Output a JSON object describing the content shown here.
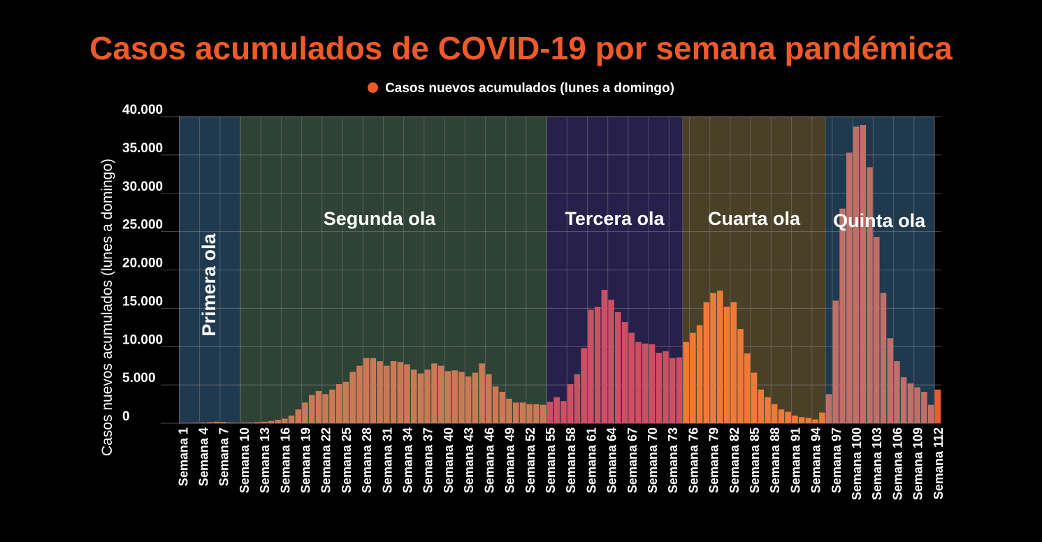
{
  "chart_data": {
    "type": "bar",
    "title": "Casos acumulados de COVID-19 por semana pandémica",
    "legend": [
      "Casos nuevos acumulados (lunes a domingo)"
    ],
    "ylabel": "Casos nuevos acumulados (lunes a domingo)",
    "xlabel": "",
    "ylim": [
      0,
      40000
    ],
    "yticks": [
      "0",
      "5.000",
      "10.000",
      "15.000",
      "20.000",
      "25.000",
      "30.000",
      "35.000",
      "40.000"
    ],
    "grid": true,
    "x_tick_labels": [
      "Semana 1",
      "Semana 4",
      "Semana 7",
      "Semana 10",
      "Semana 13",
      "Semana 16",
      "Semana 19",
      "Semana 22",
      "Semana 25",
      "Semana 28",
      "Semana 31",
      "Semana 34",
      "Semana 37",
      "Semana 40",
      "Semana 43",
      "Semana 46",
      "Semana 49",
      "Semana 52",
      "Semana 55",
      "Semana 58",
      "Semana 61",
      "Semana 64",
      "Semana 67",
      "Semana 70",
      "Semana 73",
      "Semana 76",
      "Semana 79",
      "Semana 82",
      "Semana 85",
      "Semana 88",
      "Semana 91",
      "Semana 94",
      "Semana 97",
      "Semana 100",
      "Semana 103",
      "Semana 106",
      "Semana 109",
      "Semana 112"
    ],
    "weeks": [
      1,
      112
    ],
    "values": [
      20,
      60,
      80,
      100,
      150,
      200,
      180,
      100,
      60,
      80,
      100,
      150,
      200,
      300,
      450,
      600,
      1000,
      1800,
      2700,
      3700,
      4200,
      3800,
      4400,
      5100,
      5400,
      6700,
      7500,
      8500,
      8500,
      8100,
      7500,
      8100,
      8000,
      7700,
      7000,
      6500,
      7000,
      7800,
      7500,
      6800,
      6900,
      6700,
      6100,
      6600,
      7800,
      6400,
      4800,
      4100,
      3200,
      2700,
      2700,
      2500,
      2500,
      2400,
      2800,
      3400,
      2900,
      5100,
      6400,
      9800,
      14800,
      15200,
      17400,
      16100,
      14500,
      13200,
      11800,
      10600,
      10400,
      10300,
      9200,
      9400,
      8500,
      8600,
      10600,
      11800,
      12800,
      15800,
      17000,
      17300,
      15200,
      15800,
      12300,
      9100,
      6600,
      4400,
      3400,
      2500,
      1800,
      1500,
      1000,
      800,
      700,
      500,
      1400,
      3800,
      16000,
      28000,
      35300,
      38700,
      38900,
      33400,
      24300,
      17000,
      11100,
      8100,
      6000,
      5200,
      4700,
      4100,
      2400,
      4400
    ],
    "colors": {
      "primera": "#ba7a5a",
      "segunda": "#c97a55",
      "tercera": "#cd4f62",
      "cuarta": "#ee7a38",
      "quinta": "#c07068",
      "last": "#ef5a2a",
      "legend": "#ef5a2a"
    },
    "waves": [
      {
        "name": "Primera ola",
        "from": 1,
        "to": 9,
        "fill": "#1f3a4f",
        "orientation": "vertical"
      },
      {
        "name": "Segunda ola",
        "from": 10,
        "to": 54,
        "fill": "#2f4236",
        "orientation": "horizontal"
      },
      {
        "name": "Tercera ola",
        "from": 55,
        "to": 74,
        "fill": "#26204b",
        "orientation": "horizontal"
      },
      {
        "name": "Cuarta ola",
        "from": 75,
        "to": 95,
        "fill": "#4a4028",
        "orientation": "horizontal"
      },
      {
        "name": "Quinta ola",
        "from": 96,
        "to": 111,
        "fill": "#1f3a4f",
        "orientation": "horizontal"
      }
    ]
  }
}
